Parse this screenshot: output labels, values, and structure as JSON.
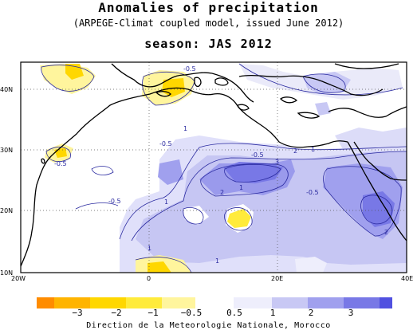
{
  "title": "Anomalies of precipitation",
  "subtitle": "(ARPEGE-Climat coupled model, issued June 2012)",
  "season_label": "season: JAS 2012",
  "footer": "Direction de la Meteorologie Nationale, Morocco",
  "axes": {
    "lat_ticks": [
      {
        "lat": 40,
        "label": "40N"
      },
      {
        "lat": 30,
        "label": "30N"
      },
      {
        "lat": 20,
        "label": "20N"
      },
      {
        "lat": 10,
        "label": "10N"
      }
    ],
    "lon_ticks": [
      {
        "lon": -20,
        "label": "20W"
      },
      {
        "lon": 0,
        "label": "0"
      },
      {
        "lon": 20,
        "label": "20E"
      },
      {
        "lon": 40,
        "label": "40E"
      }
    ],
    "lon_range": [
      -20,
      40
    ],
    "lat_range": [
      10,
      45
    ]
  },
  "colorbar": {
    "ticks": [
      "−3",
      "−2",
      "−1",
      "−0.5",
      "0.5",
      "1",
      "2",
      "3"
    ],
    "colors": [
      "#ff8c00",
      "#ffb400",
      "#ffd700",
      "#ffeb3b",
      "#fff59d",
      "#eeeefc",
      "#c8c8f4",
      "#a0a0ee",
      "#7878e6",
      "#5050e0"
    ]
  },
  "contour_labels": [
    "-0.5",
    "-0.5",
    "-0.5",
    "-0.5",
    "-0.5",
    "-0.5",
    "1",
    "1",
    "1",
    "1",
    "1",
    "1",
    "2",
    "2",
    "2",
    "3"
  ],
  "colors": {
    "grid": "#555555",
    "coast": "#000000",
    "contour": "#2a2aa0"
  }
}
